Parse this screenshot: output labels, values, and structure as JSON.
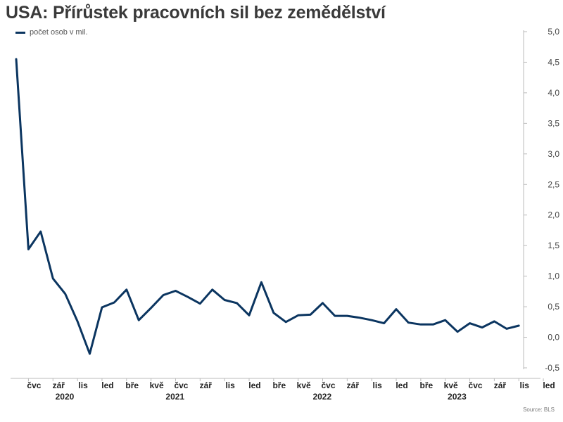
{
  "title": "USA: Přírůstek pracovních sil bez zemědělství",
  "legend": {
    "label": "počet osob v mil.",
    "color": "#0b3560"
  },
  "source": "Source: BLS",
  "chart_data": {
    "type": "line",
    "title": "USA: Přírůstek pracovních sil bez zemědělství",
    "ylim": [
      -0.5,
      5.0
    ],
    "yticks": [
      "-0,5",
      "0,0",
      "0,5",
      "1,0",
      "1,5",
      "2,0",
      "2,5",
      "3,0",
      "3,5",
      "4,0",
      "4,5",
      "5,0"
    ],
    "y_axis_side": "right",
    "grid": false,
    "legend_position": "top-left",
    "x_tick_labels": [
      "čvc",
      "zář",
      "lis",
      "led",
      "bře",
      "kvě",
      "čvc",
      "zář",
      "lis",
      "led",
      "bře",
      "kvě",
      "čvc",
      "zář",
      "lis",
      "led",
      "bře",
      "kvě",
      "čvc",
      "zář",
      "lis",
      "led"
    ],
    "years": [
      "2020",
      "2021",
      "2022",
      "2023"
    ],
    "categories": [
      "2020-06",
      "2020-07",
      "2020-08",
      "2020-09",
      "2020-10",
      "2020-11",
      "2020-12",
      "2021-01",
      "2021-02",
      "2021-03",
      "2021-04",
      "2021-05",
      "2021-06",
      "2021-07",
      "2021-08",
      "2021-09",
      "2021-10",
      "2021-11",
      "2021-12",
      "2022-01",
      "2022-02",
      "2022-03",
      "2022-04",
      "2022-05",
      "2022-06",
      "2022-07",
      "2022-08",
      "2022-09",
      "2022-10",
      "2022-11",
      "2022-12",
      "2023-01",
      "2023-02",
      "2023-03",
      "2023-04",
      "2023-05",
      "2023-06",
      "2023-07",
      "2023-08",
      "2023-09",
      "2023-10",
      "2023-11"
    ],
    "series": [
      {
        "name": "počet osob v mil.",
        "color": "#0b3560",
        "values": [
          4.55,
          1.44,
          1.73,
          0.96,
          0.71,
          0.26,
          -0.27,
          0.49,
          0.57,
          0.78,
          0.28,
          0.48,
          0.69,
          0.76,
          0.66,
          0.55,
          0.78,
          0.61,
          0.56,
          0.36,
          0.9,
          0.4,
          0.25,
          0.36,
          0.37,
          0.56,
          0.35,
          0.35,
          0.32,
          0.28,
          0.23,
          0.46,
          0.24,
          0.21,
          0.21,
          0.28,
          0.09,
          0.23,
          0.16,
          0.26,
          0.14,
          0.19
        ]
      }
    ]
  }
}
